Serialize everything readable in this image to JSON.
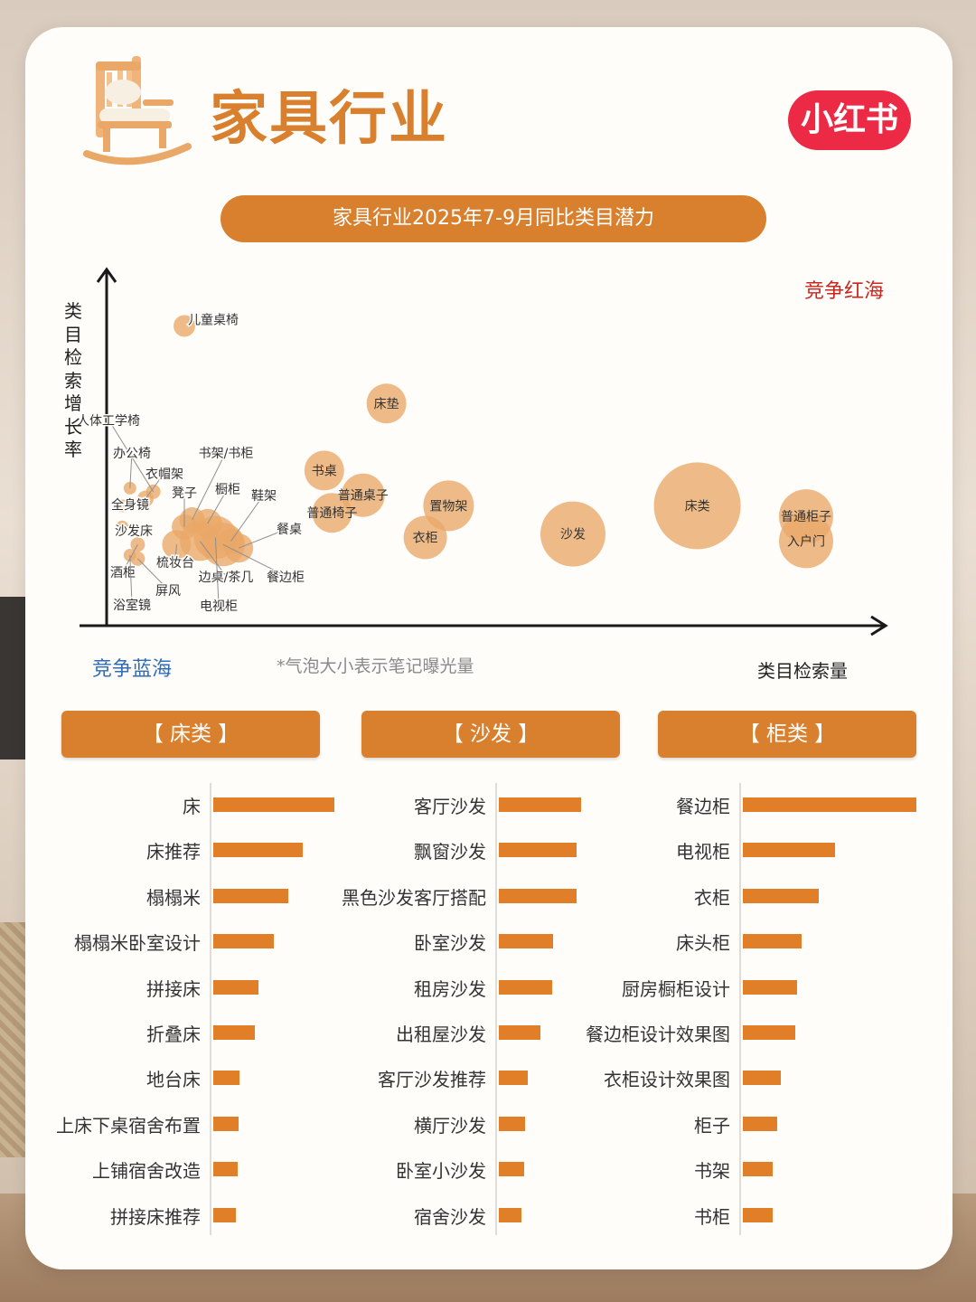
{
  "header": {
    "title": "家具行业",
    "brand_label": "小红书",
    "subtitle": "家具行业2025年7-9月同比类目潜力"
  },
  "colors": {
    "accent": "#d9802e",
    "bubble": "#e9a868",
    "bar": "#e07f28",
    "brand": "#ec2a45",
    "red_quadrant": "#c9261f",
    "blue_quadrant": "#2f6db6"
  },
  "chart_data": [
    {
      "type": "scatter",
      "title": "家具行业2025年7-9月同比类目潜力",
      "xlabel": "类目检索量",
      "ylabel": "类目检索增长率",
      "note": "*气泡大小表示笔记曝光量",
      "quadrant_labels": {
        "top_right": "竞争红海",
        "bottom_left": "竞争蓝海"
      },
      "xlim": [
        0,
        100
      ],
      "ylim": [
        0,
        100
      ],
      "points": [
        {
          "label": "儿童桌椅",
          "x": 10,
          "y": 85,
          "size": 12
        },
        {
          "label": "床垫",
          "x": 36,
          "y": 63,
          "size": 22
        },
        {
          "label": "书桌",
          "x": 28,
          "y": 44,
          "size": 22
        },
        {
          "label": "普通桌子",
          "x": 33,
          "y": 37,
          "size": 24
        },
        {
          "label": "普通椅子",
          "x": 29,
          "y": 32,
          "size": 22
        },
        {
          "label": "置物架",
          "x": 44,
          "y": 34,
          "size": 28
        },
        {
          "label": "衣柜",
          "x": 41,
          "y": 25,
          "size": 24
        },
        {
          "label": "沙发",
          "x": 60,
          "y": 26,
          "size": 36
        },
        {
          "label": "床类",
          "x": 76,
          "y": 34,
          "size": 48
        },
        {
          "label": "普通柜子",
          "x": 90,
          "y": 31,
          "size": 30
        },
        {
          "label": "入户门",
          "x": 90,
          "y": 24,
          "size": 30
        },
        {
          "label": "人体工学椅",
          "x": 6,
          "y": 38,
          "size": 8
        },
        {
          "label": "办公椅",
          "x": 3,
          "y": 39,
          "size": 7
        },
        {
          "label": "书架/书柜",
          "x": 11,
          "y": 30,
          "size": 14
        },
        {
          "label": "衣帽架",
          "x": 5,
          "y": 36,
          "size": 9
        },
        {
          "label": "凳子",
          "x": 10,
          "y": 28,
          "size": 14
        },
        {
          "label": "橱柜",
          "x": 13,
          "y": 29,
          "size": 16
        },
        {
          "label": "鞋架",
          "x": 16,
          "y": 24,
          "size": 14
        },
        {
          "label": "全身镜",
          "x": 2,
          "y": 34,
          "size": 7
        },
        {
          "label": "沙发床",
          "x": 2,
          "y": 28,
          "size": 7
        },
        {
          "label": "餐桌",
          "x": 17,
          "y": 22,
          "size": 16
        },
        {
          "label": "梳妆台",
          "x": 9,
          "y": 23,
          "size": 16
        },
        {
          "label": "酒柜",
          "x": 4,
          "y": 23,
          "size": 8
        },
        {
          "label": "屏风",
          "x": 4,
          "y": 19,
          "size": 8
        },
        {
          "label": "边桌/茶几",
          "x": 12,
          "y": 24,
          "size": 22
        },
        {
          "label": "餐边柜",
          "x": 15,
          "y": 23,
          "size": 24
        },
        {
          "label": "浴室镜",
          "x": 3,
          "y": 20,
          "size": 7
        },
        {
          "label": "电视柜",
          "x": 14,
          "y": 25,
          "size": 24
        }
      ]
    },
    {
      "type": "bar",
      "title": "【 床类 】",
      "categories": [
        "床",
        "床推荐",
        "榻榻米",
        "榻榻米卧室设计",
        "拼接床",
        "折叠床",
        "地台床",
        "上床下桌宿舍布置",
        "上铺宿舍改造",
        "拼接床推荐"
      ],
      "values": [
        100,
        74,
        62,
        50,
        37,
        34,
        22,
        21,
        20,
        19
      ]
    },
    {
      "type": "bar",
      "title": "【 沙发 】",
      "categories": [
        "客厅沙发",
        "飘窗沙发",
        "黑色沙发客厅搭配",
        "卧室沙发",
        "租房沙发",
        "出租屋沙发",
        "客厅沙发推荐",
        "横厅沙发",
        "卧室小沙发",
        "宿舍沙发"
      ],
      "values": [
        100,
        95,
        94,
        66,
        65,
        51,
        35,
        32,
        31,
        27
      ]
    },
    {
      "type": "bar",
      "title": "【 柜类 】",
      "categories": [
        "餐边柜",
        "电视柜",
        "衣柜",
        "床头柜",
        "厨房橱柜设计",
        "餐边柜设计效果图",
        "衣柜设计效果图",
        "柜子",
        "书架",
        "书柜"
      ],
      "values": [
        100,
        53,
        44,
        34,
        31,
        30,
        22,
        20,
        17,
        17
      ]
    }
  ]
}
